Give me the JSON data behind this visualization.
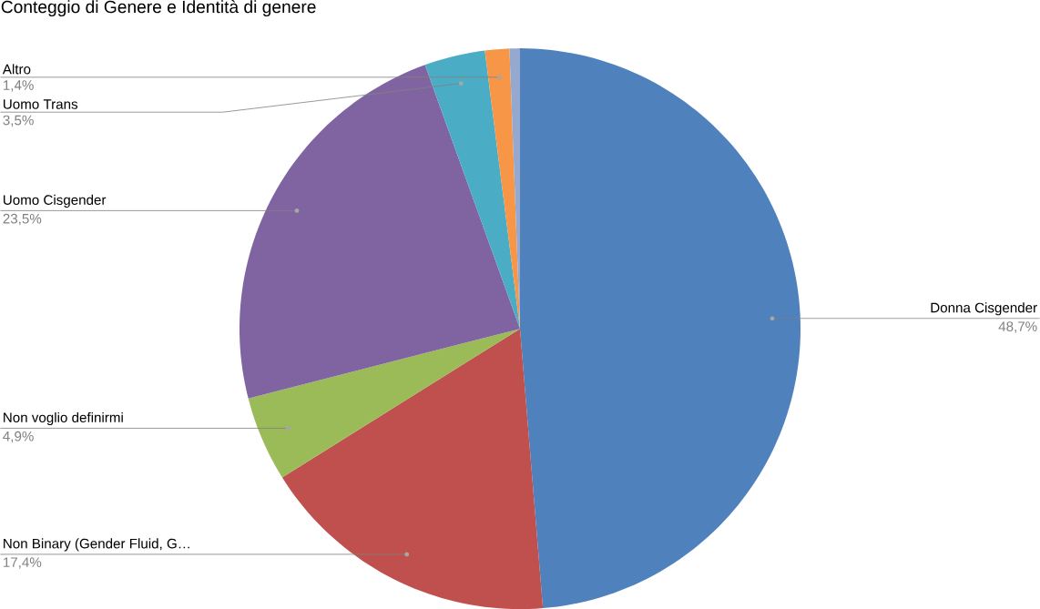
{
  "chart_data": {
    "type": "pie",
    "title": "Conteggio di Genere e Identità di genere",
    "categories": [
      "Donna Cisgender",
      "Non Binary (Gender Fluid, G…",
      "Non voglio definirmi",
      "Uomo Cisgender",
      "Uomo Trans",
      "Altro",
      null
    ],
    "values": [
      48.7,
      17.4,
      4.9,
      23.5,
      3.5,
      1.4,
      0.6
    ],
    "value_labels": [
      "48,7%",
      "17,4%",
      "4,9%",
      "23,5%",
      "3,5%",
      "1,4%",
      null
    ],
    "colors": [
      "#4f81bd",
      "#c0504d",
      "#9bbb59",
      "#8064a2",
      "#4bacc6",
      "#f79646",
      "#95a9d0"
    ]
  }
}
